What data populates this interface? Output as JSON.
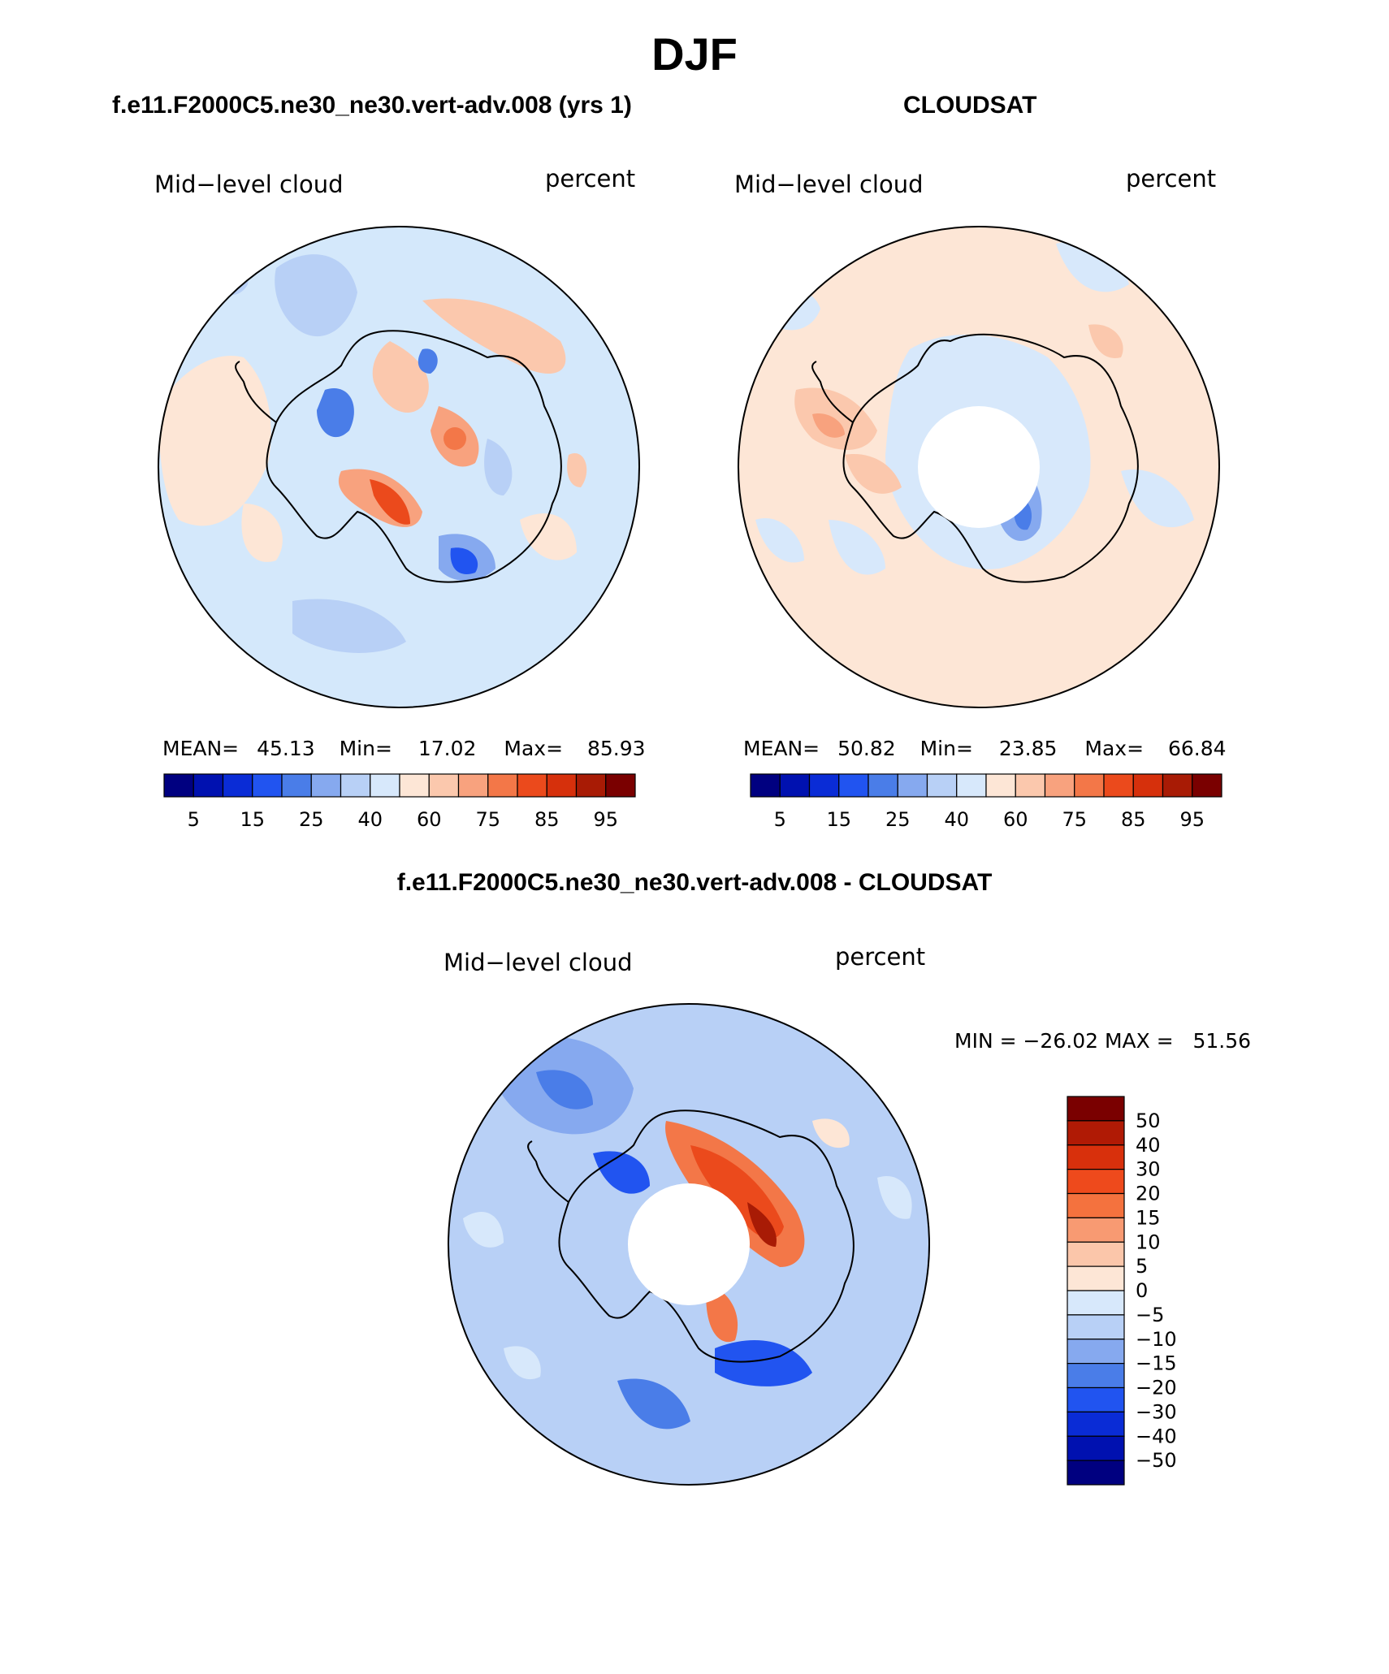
{
  "season": "DJF",
  "colors": {
    "land_outline": "#000000",
    "ocean_base": "#d4e8fb"
  },
  "panels": [
    {
      "case_title": "f.e11.F2000C5.ne30_ne30.vert-adv.008 (yrs 1)",
      "left_label": "Mid−level cloud",
      "right_label": "percent",
      "stats": {
        "mean_label": "MEAN=",
        "mean": "45.13",
        "min_label": "Min=",
        "min": "17.02",
        "max_label": "Max=",
        "max": "85.93"
      },
      "colorbar": {
        "colors": [
          "#000080",
          "#0011b0",
          "#0a2cd6",
          "#2154f0",
          "#4a7de8",
          "#86a9ef",
          "#b8d0f6",
          "#d7e8fb",
          "#fde6d6",
          "#fbc8ad",
          "#f8a27e",
          "#f37748",
          "#eb4a1c",
          "#d6300c",
          "#a81b05",
          "#7a0000"
        ],
        "labels": [
          "5",
          "15",
          "25",
          "40",
          "60",
          "75",
          "85",
          "95"
        ]
      },
      "has_hole": false
    },
    {
      "case_title": "CLOUDSAT",
      "left_label": "Mid−level cloud",
      "right_label": "percent",
      "stats": {
        "mean_label": "MEAN=",
        "mean": "50.82",
        "min_label": "Min=",
        "min": "23.85",
        "max_label": "Max=",
        "max": "66.84"
      },
      "colorbar": {
        "colors": [
          "#000080",
          "#0011b0",
          "#0a2cd6",
          "#2154f0",
          "#4a7de8",
          "#86a9ef",
          "#b8d0f6",
          "#d7e8fb",
          "#fde6d6",
          "#fbc8ad",
          "#f8a27e",
          "#f37748",
          "#eb4a1c",
          "#d6300c",
          "#a81b05",
          "#7a0000"
        ],
        "labels": [
          "5",
          "15",
          "25",
          "40",
          "60",
          "75",
          "85",
          "95"
        ]
      },
      "has_hole": true
    }
  ],
  "diff": {
    "title": "f.e11.F2000C5.ne30_ne30.vert-adv.008 - CLOUDSAT",
    "left_label": "Mid−level cloud",
    "right_label": "percent",
    "minmax_text": "MIN = −26.02 MAX =   51.56",
    "colorbar": {
      "colors": [
        "#7a0000",
        "#b01a05",
        "#d8300c",
        "#ee4a1c",
        "#f4723e",
        "#f89a72",
        "#fbc6aa",
        "#fde6d6",
        "#d7e8fb",
        "#b8d0f6",
        "#86a9ef",
        "#4a7de8",
        "#2154f0",
        "#0a2cd6",
        "#0011b0",
        "#000080"
      ],
      "labels": [
        "50",
        "40",
        "30",
        "20",
        "15",
        "10",
        "5",
        "0",
        "−5",
        "−10",
        "−15",
        "−20",
        "−30",
        "−40",
        "−50"
      ]
    }
  }
}
